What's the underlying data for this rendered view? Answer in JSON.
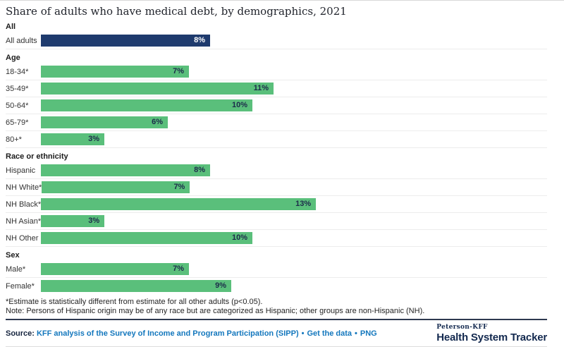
{
  "title": "Share of adults who have medical debt, by demographics, 2021",
  "chart_data": {
    "type": "bar",
    "orientation": "horizontal",
    "unit": "%",
    "value_labels_inside_bars": true,
    "groups": [
      {
        "label": "All",
        "rows": [
          {
            "label": "All adults",
            "value": 8,
            "display": "8%",
            "color": "navy"
          }
        ]
      },
      {
        "label": "Age",
        "rows": [
          {
            "label": "18-34*",
            "value": 7,
            "display": "7%",
            "color": "green"
          },
          {
            "label": "35-49*",
            "value": 11,
            "display": "11%",
            "color": "green"
          },
          {
            "label": "50-64*",
            "value": 10,
            "display": "10%",
            "color": "green"
          },
          {
            "label": "65-79*",
            "value": 6,
            "display": "6%",
            "color": "green"
          },
          {
            "label": "80+*",
            "value": 3,
            "display": "3%",
            "color": "green"
          }
        ]
      },
      {
        "label": "Race or ethnicity",
        "rows": [
          {
            "label": "Hispanic",
            "value": 8,
            "display": "8%",
            "color": "green"
          },
          {
            "label": "NH White*",
            "value": 7,
            "display": "7%",
            "color": "green"
          },
          {
            "label": "NH Black*",
            "value": 13,
            "display": "13%",
            "color": "green"
          },
          {
            "label": "NH Asian*",
            "value": 3,
            "display": "3%",
            "color": "green"
          },
          {
            "label": "NH Other",
            "value": 10,
            "display": "10%",
            "color": "green"
          }
        ]
      },
      {
        "label": "Sex",
        "rows": [
          {
            "label": "Male*",
            "value": 7,
            "display": "7%",
            "color": "green"
          },
          {
            "label": "Female*",
            "value": 9,
            "display": "9%",
            "color": "green"
          }
        ]
      }
    ]
  },
  "footnotes": [
    "*Estimate is statistically different from estimate for all other adults (p<0.05).",
    "Note: Persons of Hispanic origin may be of any race but are categorized as Hispanic; other groups are non-Hispanic (NH)."
  ],
  "footer": {
    "source_label": "Source:",
    "separator": "•",
    "links": [
      {
        "text": "KFF analysis of the Survey of Income and Program Participation (SIPP)"
      },
      {
        "text": "Get the data"
      },
      {
        "text": "PNG"
      }
    ],
    "logo": {
      "line1": "Peterson-KFF",
      "line2": "Health System Tracker"
    }
  },
  "colors": {
    "navy": "#1e3a6d",
    "green": "#5abf7b",
    "value_label_on_green": "#1c2b4a",
    "value_label_on_navy": "#ffffff",
    "link_blue": "#1377bd"
  }
}
